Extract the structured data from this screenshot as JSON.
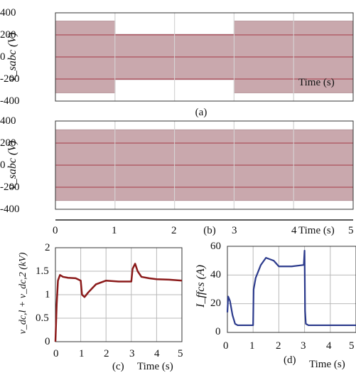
{
  "chart_data": [
    {
      "id": "a",
      "type": "area",
      "caption": "(a)",
      "ylabel": "v_sabc (V)",
      "ylim": [
        -400,
        400
      ],
      "yticks": [
        "400",
        "200",
        "0",
        "-200",
        "-400"
      ],
      "xlim": [
        0,
        5
      ],
      "grid": true,
      "envelope": {
        "t": [
          0,
          1,
          1,
          3,
          3,
          5
        ],
        "amp": [
          325,
          325,
          205,
          205,
          325,
          325
        ]
      },
      "inline_texts": [
        "Time (s)"
      ]
    },
    {
      "id": "b",
      "type": "area",
      "caption": "(b)",
      "ylabel": "v_sabc (V)",
      "ylim": [
        -400,
        400
      ],
      "yticks": [
        "400",
        "200",
        "0",
        "-200",
        "-400"
      ],
      "xlim": [
        0,
        5
      ],
      "xticks": [
        "0",
        "1",
        "2",
        "3",
        "4",
        "5"
      ],
      "xlabel": "Time (s)",
      "grid": true,
      "envelope": {
        "t": [
          0,
          5
        ],
        "amp": [
          320,
          320
        ]
      }
    },
    {
      "id": "c",
      "type": "line",
      "caption": "(c)",
      "ylabel": "v_dc,l + v_dc,2 (kV)",
      "xlabel": "Time (s)",
      "ylim": [
        0,
        2
      ],
      "yticks": [
        "2",
        "1.5",
        "1",
        "0.5",
        "0"
      ],
      "xlim": [
        0,
        5
      ],
      "xticks": [
        "0",
        "1",
        "2",
        "3",
        "4",
        "5"
      ],
      "grid": true,
      "series": [
        {
          "color": "#8b1a1a",
          "x": [
            0,
            0.05,
            0.1,
            0.18,
            0.3,
            0.5,
            0.8,
            1.0,
            1.05,
            1.15,
            1.3,
            1.6,
            2.0,
            2.5,
            3.0,
            3.05,
            3.15,
            3.25,
            3.4,
            3.7,
            4.0,
            4.5,
            5.0
          ],
          "y": [
            0,
            0.8,
            1.3,
            1.42,
            1.38,
            1.36,
            1.35,
            1.3,
            1.0,
            0.95,
            1.05,
            1.22,
            1.3,
            1.28,
            1.28,
            1.55,
            1.66,
            1.5,
            1.38,
            1.35,
            1.33,
            1.32,
            1.3
          ]
        }
      ]
    },
    {
      "id": "d",
      "type": "line",
      "caption": "(d)",
      "ylabel": "I_ffcs (A)",
      "xlabel": "Time (s)",
      "ylim": [
        0,
        60
      ],
      "yticks": [
        "60",
        "40",
        "20",
        "0"
      ],
      "xlim": [
        0,
        5
      ],
      "xticks": [
        "0",
        "1",
        "2",
        "3",
        "4",
        "5"
      ],
      "grid": true,
      "series": [
        {
          "color": "#2b3a8c",
          "x": [
            0,
            0.03,
            0.1,
            0.2,
            0.3,
            0.4,
            0.5,
            0.7,
            1.0,
            1.02,
            1.1,
            1.3,
            1.5,
            1.8,
            2.0,
            2.5,
            2.97,
            3.0,
            3.02,
            3.05,
            3.15,
            3.5,
            4.0,
            5.0
          ],
          "y": [
            14,
            25,
            22,
            12,
            6,
            5,
            5,
            5,
            5,
            30,
            38,
            47,
            52,
            50,
            46,
            46,
            47,
            57,
            15,
            6,
            5,
            5,
            5,
            5
          ]
        }
      ]
    }
  ]
}
